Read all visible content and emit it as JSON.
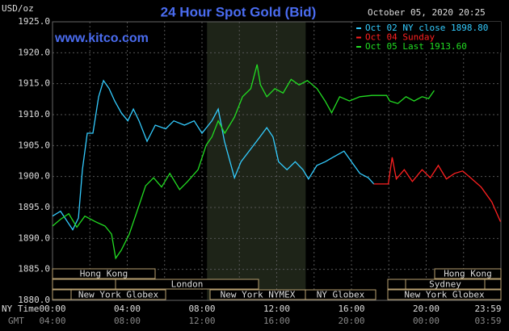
{
  "chart_data": {
    "type": "line",
    "title": "24 Hour Spot Gold (Bid)",
    "subtitle": "www.kitco.com",
    "timestamp": "October 05, 2020 20:25",
    "y_label": "USD/oz",
    "x_axis_rows": [
      "NY Time",
      "GMT"
    ],
    "xlim": [
      0,
      24
    ],
    "ylim": [
      1880,
      1925
    ],
    "yticks": [
      {
        "value": 1880,
        "label": "1880.0"
      },
      {
        "value": 1885,
        "label": "1885.0"
      },
      {
        "value": 1890,
        "label": "1890.0"
      },
      {
        "value": 1895,
        "label": "1895.0"
      },
      {
        "value": 1900,
        "label": "1900.0"
      },
      {
        "value": 1905,
        "label": "1905.0"
      },
      {
        "value": 1910,
        "label": "1910.0"
      },
      {
        "value": 1915,
        "label": "1915.0"
      },
      {
        "value": 1920,
        "label": "1920.0"
      },
      {
        "value": 1925,
        "label": "1925.0"
      }
    ],
    "xticks": [
      {
        "value": 0,
        "label": "00:00"
      },
      {
        "value": 4,
        "label": "04:00"
      },
      {
        "value": 8,
        "label": "08:00"
      },
      {
        "value": 12,
        "label": "12:00"
      },
      {
        "value": 16,
        "label": "16:00"
      },
      {
        "value": 20,
        "label": "20:00"
      },
      {
        "value": 23.98,
        "label": "23:59"
      }
    ],
    "gmt_labels": [
      "04:00",
      "08:00",
      "12:00",
      "16:00",
      "20:00",
      "00:00",
      "03:59"
    ],
    "xgrid": [
      0,
      2,
      4,
      6,
      8,
      10,
      12,
      14,
      16,
      18,
      20,
      22,
      24
    ],
    "grid": true,
    "highlight_xlim": [
      8.27,
      13.55
    ],
    "sessions": [
      "Hong Kong",
      "Hong Kong",
      "London",
      "Sydney",
      "New York Globex",
      "New York NYMEX",
      "NY Globex",
      "New York Globex"
    ],
    "legend": "top-right",
    "series": [
      {
        "name": "Oct 02 NY close 1898.80",
        "color": "#33ccff",
        "x": [
          0,
          0.43,
          1.08,
          1.39,
          1.6,
          1.86,
          2.16,
          2.47,
          2.73,
          3.03,
          3.33,
          3.68,
          4.03,
          4.33,
          4.63,
          5.06,
          5.5,
          6.06,
          6.49,
          7.06,
          7.58,
          8.0,
          8.53,
          8.87,
          9.2,
          9.74,
          10.09,
          10.6,
          11.1,
          11.47,
          11.8,
          12.1,
          12.55,
          12.99,
          13.4,
          13.7,
          14.15,
          14.6,
          15.0,
          15.6,
          16.0,
          16.45,
          16.9,
          17.2
        ],
        "values": [
          1893.6,
          1894.4,
          1891.4,
          1893.3,
          1901.1,
          1907.0,
          1907.0,
          1912.9,
          1915.5,
          1914.2,
          1912.2,
          1910.3,
          1909.0,
          1910.9,
          1909.0,
          1905.7,
          1908.3,
          1907.7,
          1909.0,
          1908.3,
          1909.0,
          1907.0,
          1909.0,
          1910.9,
          1905.7,
          1899.8,
          1902.4,
          1904.4,
          1906.4,
          1907.9,
          1906.4,
          1902.4,
          1901.1,
          1902.4,
          1901.1,
          1899.6,
          1901.8,
          1902.4,
          1903.1,
          1904.1,
          1902.4,
          1900.5,
          1899.8,
          1898.8
        ]
      },
      {
        "name": "Oct 04 Sunday",
        "color": "#ff2020",
        "x": [
          17.19,
          17.97,
          18.18,
          18.4,
          18.83,
          19.26,
          19.78,
          20.22,
          20.65,
          21.08,
          21.52,
          21.95,
          22.38,
          22.94,
          23.51,
          23.98
        ],
        "values": [
          1898.8,
          1898.8,
          1903.1,
          1899.6,
          1901.1,
          1899.2,
          1901.1,
          1899.8,
          1901.8,
          1899.6,
          1900.5,
          1900.9,
          1899.8,
          1898.3,
          1895.9,
          1892.7
        ]
      },
      {
        "name": "Oct 05 Last 1913.60",
        "color": "#22dd22",
        "x": [
          0,
          0.43,
          0.87,
          1.3,
          1.73,
          2.29,
          2.81,
          3.16,
          3.38,
          3.68,
          4.11,
          4.55,
          4.98,
          5.41,
          5.84,
          6.28,
          6.8,
          7.23,
          7.79,
          8.23,
          8.53,
          8.87,
          9.22,
          9.74,
          10.17,
          10.61,
          10.95,
          11.13,
          11.47,
          11.9,
          12.34,
          12.77,
          13.2,
          13.64,
          14.16,
          14.59,
          14.94,
          15.37,
          15.89,
          16.45,
          17.1,
          17.88,
          18.05,
          18.48,
          18.92,
          19.35,
          19.78,
          20.13,
          20.43
        ],
        "values": [
          1892.0,
          1893.1,
          1894.0,
          1891.8,
          1893.6,
          1892.7,
          1892.0,
          1890.7,
          1886.8,
          1888.1,
          1890.7,
          1894.6,
          1898.5,
          1899.8,
          1898.3,
          1900.5,
          1897.9,
          1899.2,
          1901.1,
          1905.1,
          1906.4,
          1909.0,
          1907.0,
          1909.6,
          1912.9,
          1914.2,
          1918.1,
          1914.8,
          1912.9,
          1914.2,
          1913.5,
          1915.7,
          1914.8,
          1915.5,
          1914.2,
          1912.2,
          1910.3,
          1912.9,
          1912.2,
          1912.9,
          1913.1,
          1913.1,
          1912.2,
          1911.8,
          1912.9,
          1912.2,
          1912.9,
          1912.6,
          1913.9
        ]
      }
    ]
  }
}
